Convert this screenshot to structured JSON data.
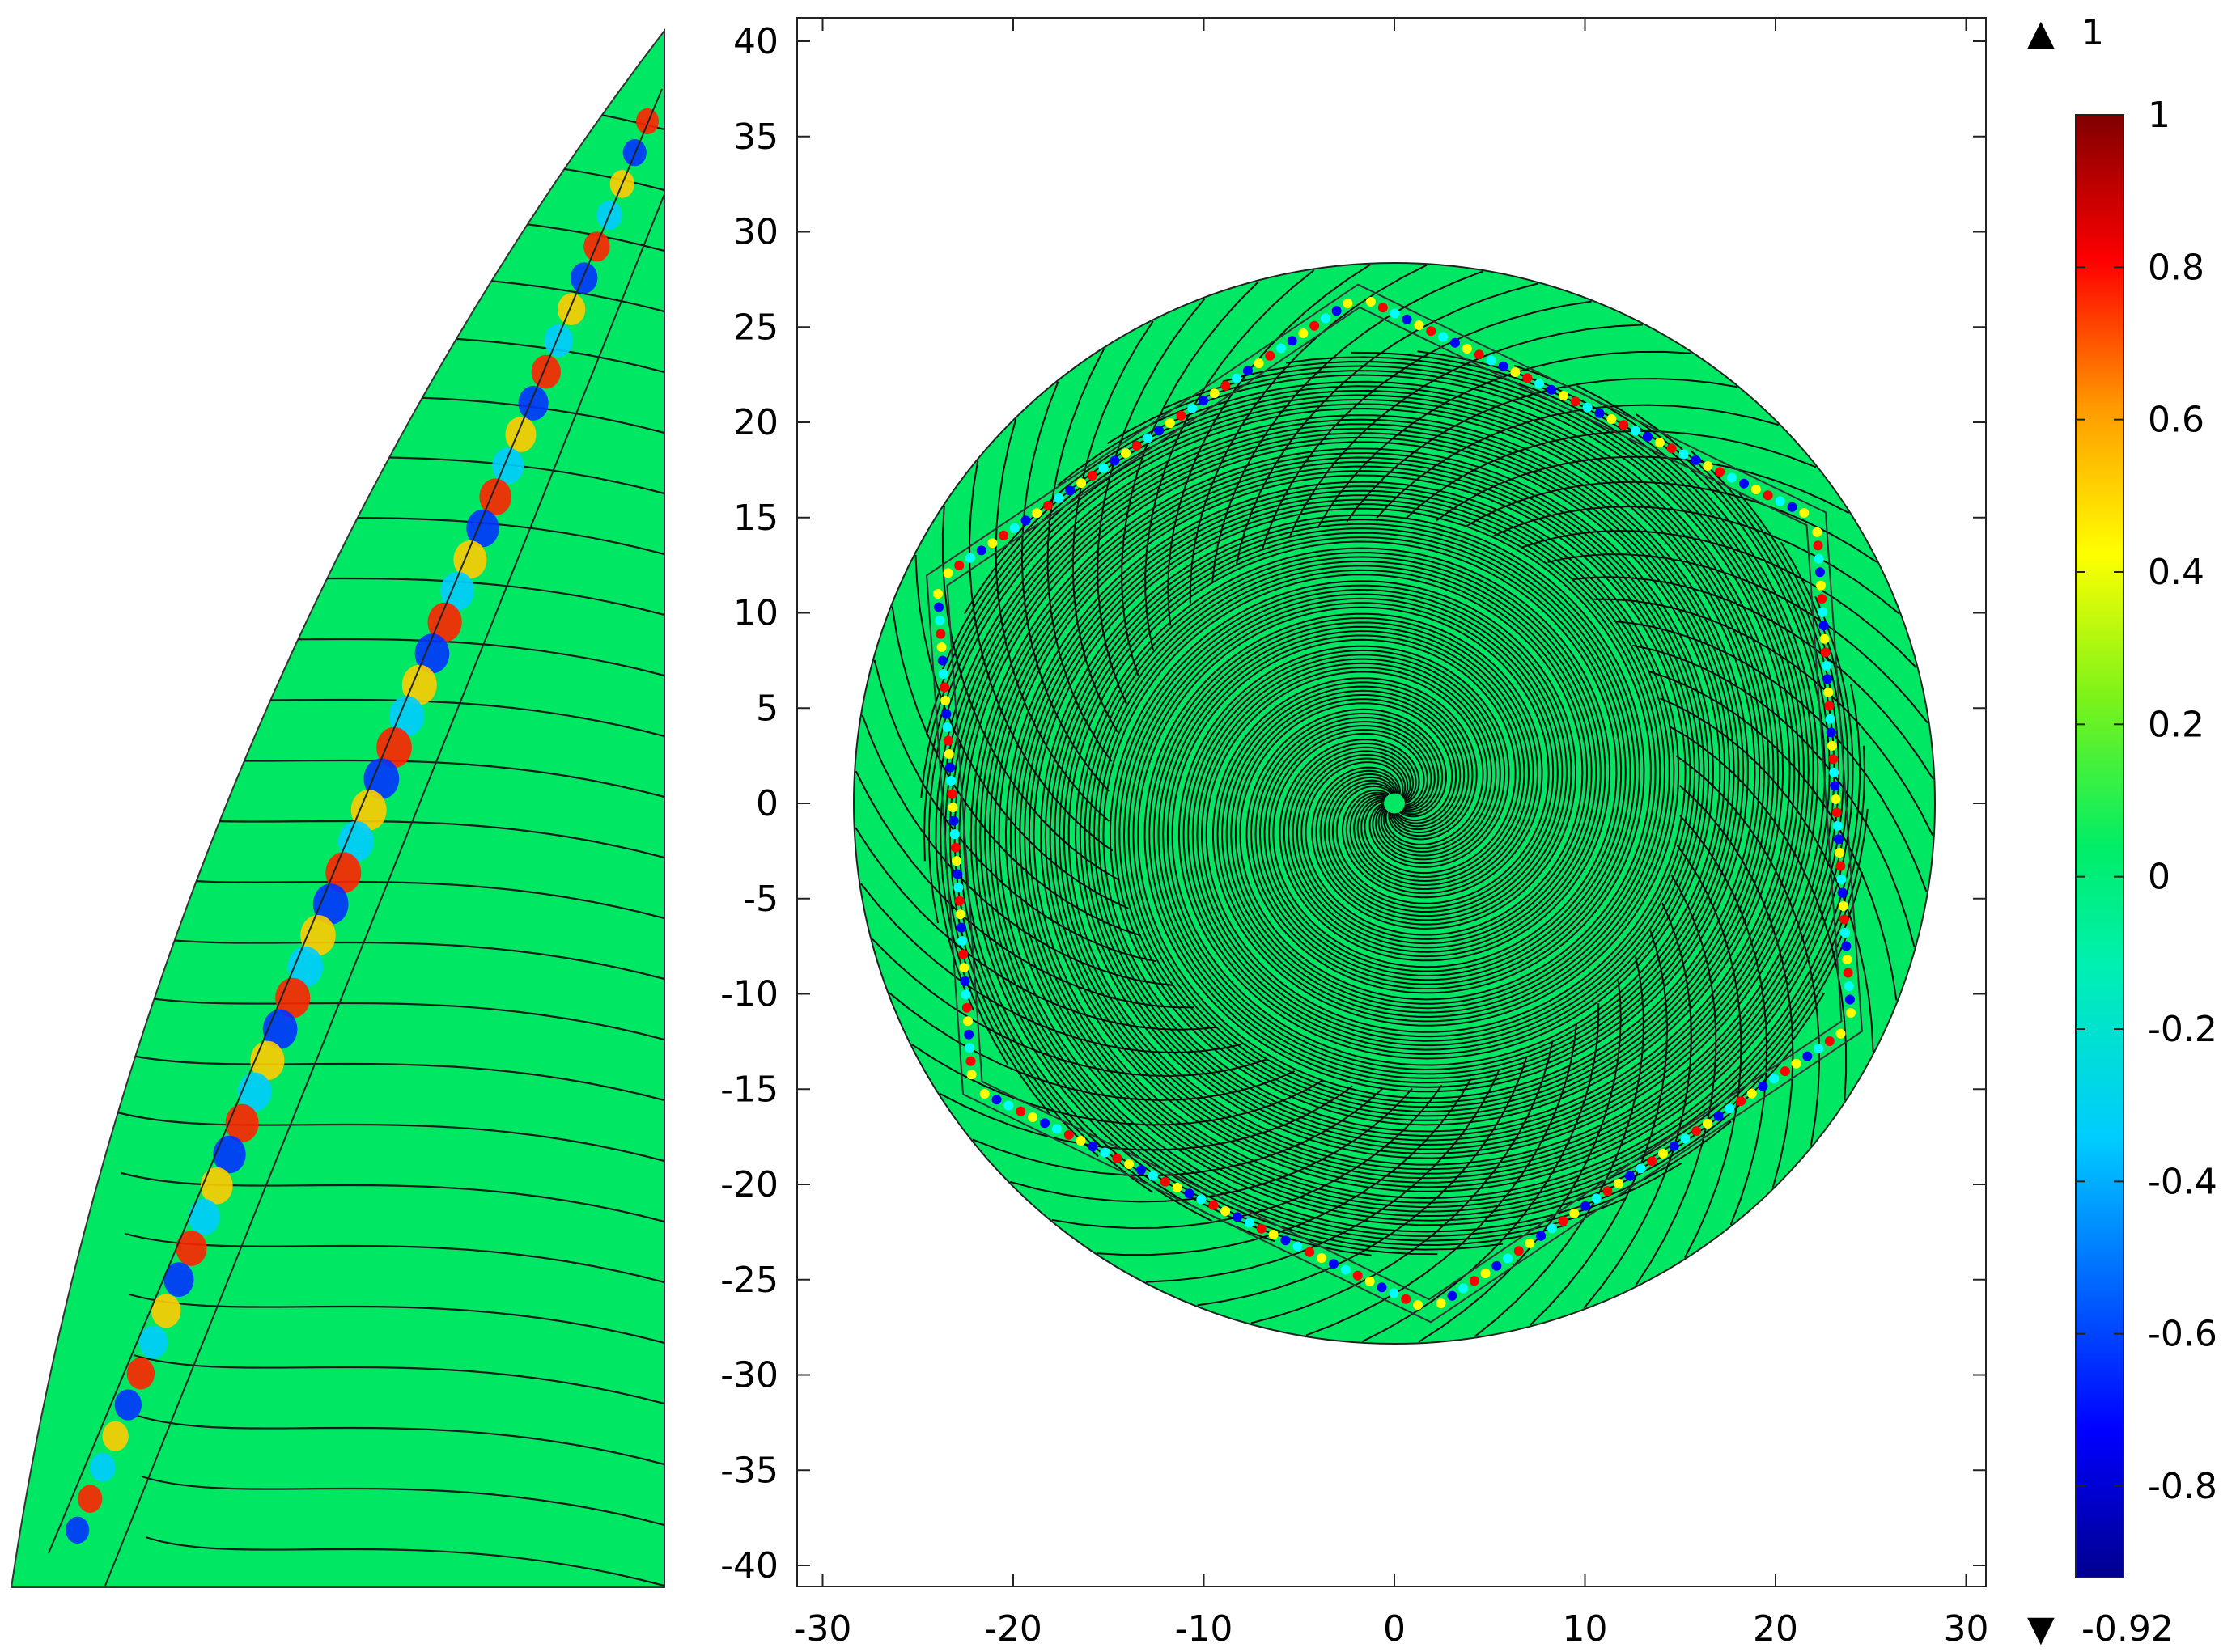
{
  "chart_data": [
    {
      "type": "heatmap",
      "panel": "zoomed-inset",
      "title": "",
      "xlabel": "",
      "ylabel": "",
      "description_values": "inset of the waveguide section with field oscillation, no axes shown"
    },
    {
      "type": "heatmap",
      "panel": "main",
      "title": "",
      "xlabel": "",
      "ylabel": "",
      "xlim": [
        -31,
        31
      ],
      "ylim": [
        -41,
        41
      ],
      "x_ticks": [
        -30,
        -20,
        -10,
        0,
        10,
        20,
        30
      ],
      "y_ticks": [
        40,
        35,
        30,
        25,
        20,
        15,
        10,
        5,
        0,
        -5,
        -10,
        -15,
        -20,
        -25,
        -30,
        -35,
        -40
      ],
      "domain_radius": 28.3,
      "hexagon_circumradius": 27.3,
      "streamlines": "spiral",
      "grid": false,
      "colorbar": {
        "min": -0.92,
        "max": 1,
        "max_label": "1",
        "min_label": "-0.92",
        "ticks": [
          1,
          0.8,
          0.6,
          0.4,
          0.2,
          0,
          -0.2,
          -0.4,
          -0.6,
          -0.8
        ],
        "tick_labels": [
          "1",
          "0.8",
          "0.6",
          "0.4",
          "0.2",
          "0",
          "-0.2",
          "-0.4",
          "-0.6",
          "-0.8"
        ],
        "colors": [
          "#00008f",
          "#0000ff",
          "#00ffff",
          "#00ee66",
          "#ffff00",
          "#ff7f00",
          "#ff0000",
          "#800000"
        ],
        "background_color": "#00e763"
      }
    }
  ],
  "legend": {
    "max_marker": "▲",
    "min_marker": "▼"
  }
}
